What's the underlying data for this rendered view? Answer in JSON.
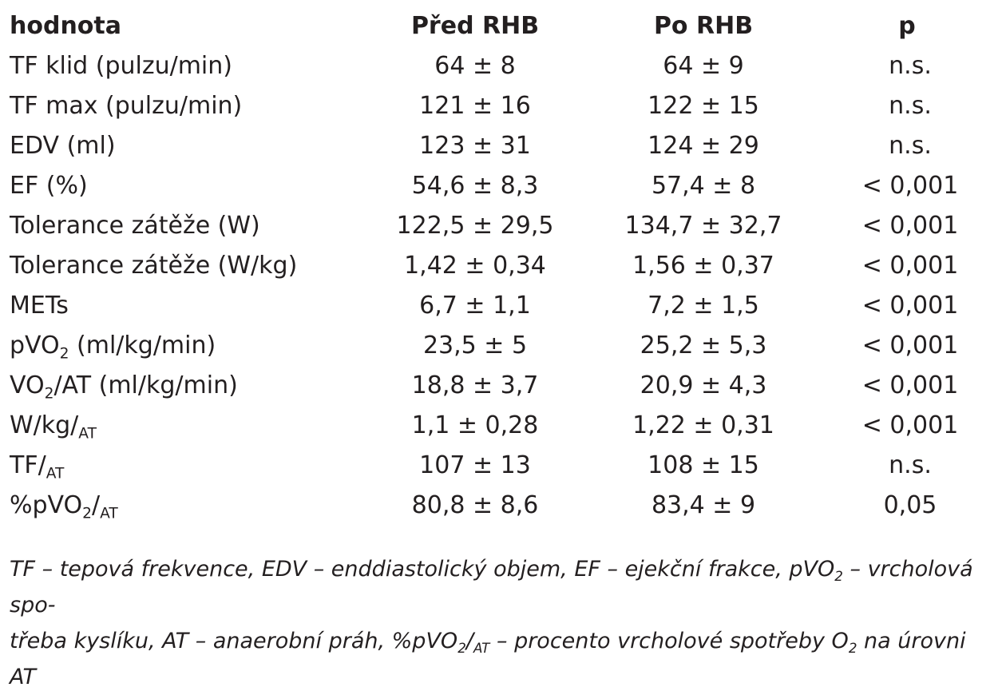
{
  "table": {
    "headers": [
      "hodnota",
      "Před RHB",
      "Po RHB",
      "p"
    ],
    "rows": [
      {
        "label": "TF klid (pulzu/min)",
        "before": "64 ± 8",
        "after": "64 ± 9",
        "p": "n.s."
      },
      {
        "label": "TF max (pulzu/min)",
        "before": "121 ± 16",
        "after": "122 ± 15",
        "p": "n.s."
      },
      {
        "label": "EDV (ml)",
        "before": "123 ± 31",
        "after": "124 ± 29",
        "p": "n.s."
      },
      {
        "label": "EF (%)",
        "before": "54,6 ± 8,3",
        "after": "57,4 ± 8",
        "p": "< 0,001"
      },
      {
        "label": "Tolerance zátěže (W)",
        "before": "122,5 ± 29,5",
        "after": "134,7 ± 32,7",
        "p": "< 0,001"
      },
      {
        "label": "Tolerance zátěže (W/kg)",
        "before": "1,42 ± 0,34",
        "after": "1,56 ± 0,37",
        "p": "< 0,001"
      },
      {
        "label": "METs",
        "before": "6,7 ± 1,1",
        "after": "7,2 ± 1,5",
        "p": "< 0,001"
      },
      {
        "label_parts": [
          "pVO",
          "2",
          " (ml/kg/min)"
        ],
        "before": "23,5 ± 5",
        "after": "25,2 ± 5,3",
        "p": "< 0,001"
      },
      {
        "label_parts": [
          "VO",
          "2",
          "/AT (ml/kg/min)"
        ],
        "before": "18,8 ± 3,7",
        "after": "20,9 ± 4,3",
        "p": "< 0,001"
      },
      {
        "label_parts": [
          "W/kg/",
          "AT"
        ],
        "before": "1,1 ± 0,28",
        "after": "1,22 ± 0,31",
        "p": "< 0,001"
      },
      {
        "label_parts": [
          "TF/",
          "AT"
        ],
        "before": "107 ± 13",
        "after": "108 ± 15",
        "p": "n.s."
      },
      {
        "label_parts": [
          "%pVO",
          "2",
          "/",
          "AT"
        ],
        "before": "80,8 ± 8,6",
        "after": "83,4 ± 9",
        "p": "0,05"
      }
    ]
  },
  "footnote": {
    "line1_parts": [
      "TF – tepová frekvence, EDV – enddiastolický objem, EF – ejekční frakce, pVO",
      "2",
      " – vrcholová spo-"
    ],
    "line2_parts": [
      "třeba kyslíku, AT – anaerobní práh, %pVO",
      "2",
      "/",
      "AT",
      " – procento vrcholové spotřeby O",
      "2",
      " na úrovni AT"
    ]
  }
}
